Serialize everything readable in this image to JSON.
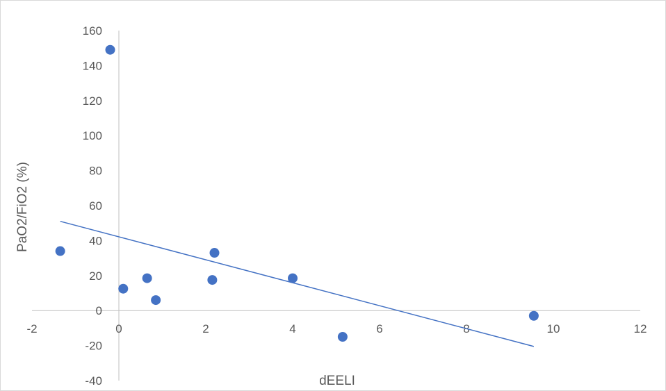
{
  "chart_data": {
    "type": "scatter",
    "title": "",
    "xlabel": "dEELI",
    "ylabel": "PaO2/FiO2 (%)",
    "xlim": [
      -2,
      12
    ],
    "ylim": [
      -40,
      160
    ],
    "x_ticks": [
      -2,
      0,
      2,
      4,
      6,
      8,
      10,
      12
    ],
    "y_ticks": [
      -40,
      -20,
      0,
      20,
      40,
      60,
      80,
      100,
      120,
      140,
      160
    ],
    "grid": false,
    "legend": "none",
    "marker_color": "#4472c4",
    "series": [
      {
        "points": [
          {
            "x": -1.35,
            "y": 34
          },
          {
            "x": -0.2,
            "y": 149
          },
          {
            "x": 0.1,
            "y": 12.5
          },
          {
            "x": 0.65,
            "y": 18.5
          },
          {
            "x": 0.85,
            "y": 6
          },
          {
            "x": 2.2,
            "y": 33
          },
          {
            "x": 2.15,
            "y": 17.5
          },
          {
            "x": 4.0,
            "y": 18.5
          },
          {
            "x": 5.15,
            "y": -15
          },
          {
            "x": 9.55,
            "y": -3
          }
        ]
      }
    ],
    "trendline": {
      "type": "linear",
      "color": "#4472c4",
      "from": {
        "x": -1.35,
        "y": 51
      },
      "to": {
        "x": 9.55,
        "y": -20.5
      }
    }
  }
}
